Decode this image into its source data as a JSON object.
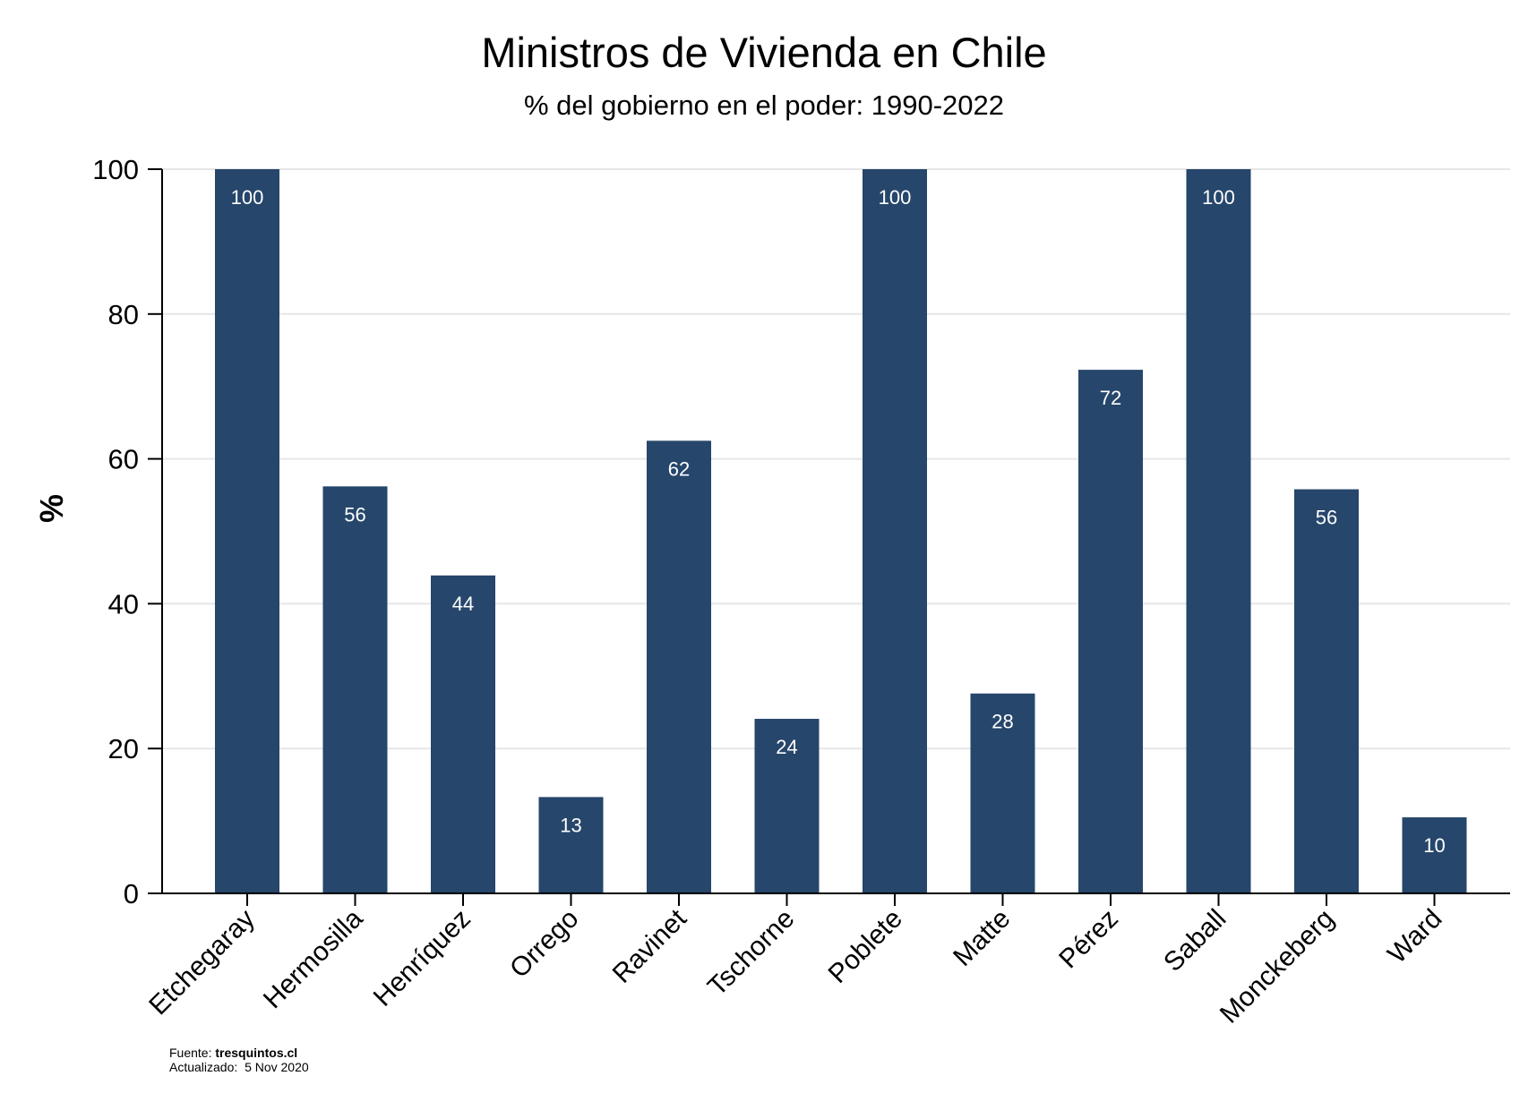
{
  "chart_data": {
    "type": "bar",
    "title": "Ministros de Vivienda en Chile",
    "subtitle": "% del gobierno en el poder: 1990-2022",
    "ylabel": "%",
    "xlabel": "",
    "ylim": [
      0,
      100
    ],
    "yticks": [
      0,
      20,
      40,
      60,
      80,
      100
    ],
    "grid": true,
    "categories": [
      "Etchegaray",
      "Hermosilla",
      "Henríquez",
      "Orrego",
      "Ravinet",
      "Tschorne",
      "Poblete",
      "Matte",
      "Pérez",
      "Saball",
      "Monckeberg",
      "Ward"
    ],
    "values": [
      100,
      56.2,
      43.9,
      13.3,
      62.5,
      24.1,
      100,
      27.6,
      72.3,
      100,
      55.8,
      10.5
    ],
    "data_labels": [
      "100",
      "56",
      "44",
      "13",
      "62",
      "24",
      "100",
      "28",
      "72",
      "100",
      "56",
      "10"
    ],
    "bar_color": "#26466b",
    "grid_color": "#e6e6e6"
  },
  "footer": {
    "source_label": "Fuente:",
    "source_value": "tresquintos.cl",
    "updated_label": "Actualizado:",
    "updated_value": "5 Nov 2020"
  }
}
